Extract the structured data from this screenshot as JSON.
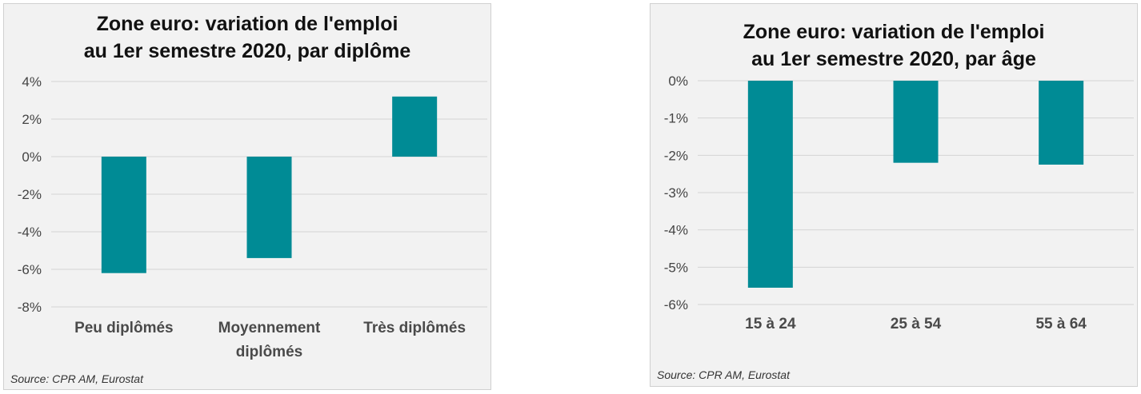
{
  "chart_data": [
    {
      "type": "bar",
      "title_lines": [
        "Zone euro: variation de l'emploi",
        "au 1er semestre 2020, par diplôme"
      ],
      "categories": [
        [
          "Peu diplômés"
        ],
        [
          "Moyennement",
          "diplômés"
        ],
        [
          "Très diplômés"
        ]
      ],
      "values": [
        -6.2,
        -5.4,
        3.2
      ],
      "ylim": [
        -8,
        4
      ],
      "yticks": [
        4,
        2,
        0,
        -2,
        -4,
        -6,
        -8
      ],
      "ytick_labels": [
        "4%",
        "2%",
        "0%",
        "-2%",
        "-4%",
        "-6%",
        "-8%"
      ],
      "grid": true,
      "bar_color": "#008b95",
      "source": "Source: CPR AM, Eurostat"
    },
    {
      "type": "bar",
      "title_lines": [
        "Zone euro: variation de l'emploi",
        "au 1er semestre 2020, par âge"
      ],
      "categories": [
        [
          "15 à 24"
        ],
        [
          "25 à 54"
        ],
        [
          "55 à 64"
        ]
      ],
      "values": [
        -5.55,
        -2.2,
        -2.25
      ],
      "ylim": [
        -6,
        0
      ],
      "yticks": [
        0,
        -1,
        -2,
        -3,
        -4,
        -5,
        -6
      ],
      "ytick_labels": [
        "0%",
        "-1%",
        "-2%",
        "-3%",
        "-4%",
        "-5%",
        "-6%"
      ],
      "grid": true,
      "bar_color": "#008b95",
      "source": "Source: CPR AM, Eurostat"
    }
  ]
}
